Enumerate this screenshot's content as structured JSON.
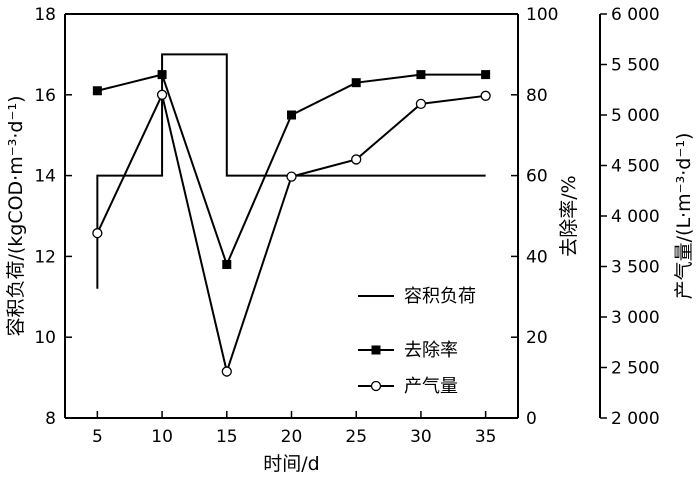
{
  "chart_data": {
    "type": "line",
    "x": [
      5,
      10,
      15,
      20,
      25,
      30,
      35
    ],
    "xlabel": "时间/d",
    "xlim": [
      2.5,
      37.5
    ],
    "xticks": [
      "5",
      "10",
      "15",
      "20",
      "25",
      "30",
      "35"
    ],
    "y_left": {
      "label": "容积负荷/(kgCOD·m⁻³·d⁻¹)",
      "ylim": [
        8,
        18
      ],
      "ticks": [
        "8",
        "10",
        "12",
        "14",
        "16",
        "18"
      ]
    },
    "y_right1": {
      "label": "去除率/%",
      "ylim": [
        0,
        100
      ],
      "ticks": [
        "0",
        "20",
        "40",
        "60",
        "80",
        "100"
      ]
    },
    "y_right2": {
      "label": "产气量/(L·m⁻³·d⁻¹)",
      "ylim": [
        2000,
        6000
      ],
      "ticks": [
        "2 000",
        "2 500",
        "3 000",
        "3 500",
        "4 000",
        "4 500",
        "5 000",
        "5 500",
        "6 000"
      ]
    },
    "series": [
      {
        "name": "容积负荷",
        "axis": "left",
        "style": "step",
        "color": "#000000",
        "points": [
          [
            5,
            11.2
          ],
          [
            5,
            14
          ],
          [
            10,
            14
          ],
          [
            10,
            17
          ],
          [
            15,
            17
          ],
          [
            15,
            14
          ],
          [
            35,
            14
          ]
        ]
      },
      {
        "name": "去除率",
        "axis": "right1",
        "style": "line-square",
        "color": "#000000",
        "values": [
          81,
          85,
          38,
          75,
          83,
          85,
          85
        ]
      },
      {
        "name": "产气量",
        "axis": "right2",
        "style": "line-circle",
        "color": "#000000",
        "values": [
          3830,
          5200,
          2460,
          4390,
          4560,
          5110,
          5190
        ]
      }
    ],
    "legend": "center-right",
    "grid": false
  }
}
